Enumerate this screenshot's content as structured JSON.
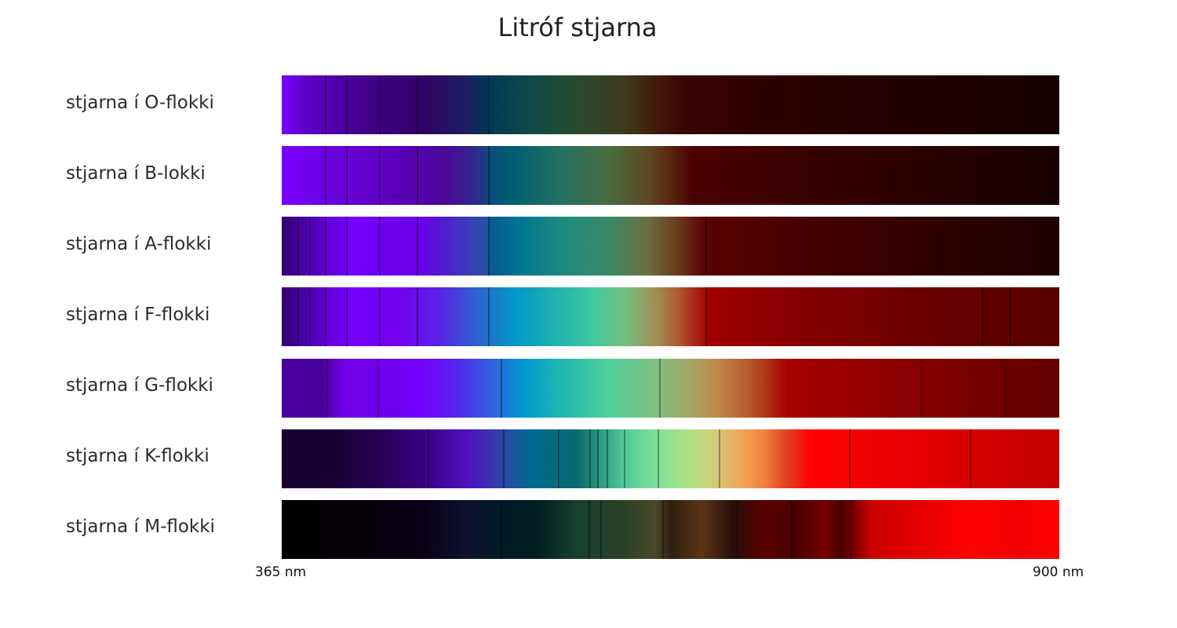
{
  "chart_data": {
    "type": "heatmap",
    "title": "Litróf stjarna",
    "xlabel": "",
    "ylabel": "",
    "x_range_nm": [
      365,
      900
    ],
    "x_tick_labels": [
      "365 nm",
      "900 nm"
    ],
    "categories": [
      "stjarna í O-flokki",
      "stjarna í B-lokki",
      "stjarna í A-flokki",
      "stjarna í F-flokki",
      "stjarna í G-flokki",
      "stjarna í K-flokki",
      "stjarna í M-flokki"
    ],
    "series": [
      {
        "name": "stjarna í O-flokki",
        "gradient": [
          [
            0,
            "#7a00ff"
          ],
          [
            3,
            "#5e00c8"
          ],
          [
            10,
            "#45008e"
          ],
          [
            18,
            "#320066"
          ],
          [
            24,
            "#1a2060"
          ],
          [
            27,
            "#003a55"
          ],
          [
            32,
            "#0f4a47"
          ],
          [
            38,
            "#2a4a30"
          ],
          [
            44,
            "#3e3a1c"
          ],
          [
            48,
            "#401c0a"
          ],
          [
            52,
            "#3a0404"
          ],
          [
            60,
            "#300000"
          ],
          [
            75,
            "#250000"
          ],
          [
            100,
            "#170000"
          ]
        ],
        "lines": [
          5.5,
          8.3,
          12.5,
          17.4,
          26.5
        ]
      },
      {
        "name": "stjarna í B-lokki",
        "gradient": [
          [
            0,
            "#7a00ff"
          ],
          [
            6,
            "#6a00e0"
          ],
          [
            15,
            "#5a00b8"
          ],
          [
            21,
            "#4a0898"
          ],
          [
            25,
            "#2f2a8c"
          ],
          [
            27,
            "#084f7a"
          ],
          [
            30,
            "#006070"
          ],
          [
            36,
            "#267060"
          ],
          [
            42,
            "#486c40"
          ],
          [
            47,
            "#5e4a24"
          ],
          [
            50,
            "#5a2410"
          ],
          [
            53,
            "#4a0000"
          ],
          [
            65,
            "#3a0000"
          ],
          [
            85,
            "#280000"
          ],
          [
            100,
            "#180000"
          ]
        ],
        "lines": [
          5.5,
          8.3,
          12.5,
          17.4,
          26.5
        ]
      },
      {
        "name": "stjarna í A-flokki",
        "gradient": [
          [
            0,
            "#300070"
          ],
          [
            2,
            "#420098"
          ],
          [
            6,
            "#6400d8"
          ],
          [
            9,
            "#7500ff"
          ],
          [
            13,
            "#7000ee"
          ],
          [
            18,
            "#6a00e8"
          ],
          [
            22,
            "#4a28c8"
          ],
          [
            26,
            "#2a50a8"
          ],
          [
            27,
            "#0a5a90"
          ],
          [
            31,
            "#007890"
          ],
          [
            36,
            "#1e8a80"
          ],
          [
            42,
            "#3a8a68"
          ],
          [
            47,
            "#6a7040"
          ],
          [
            51,
            "#6a3a1a"
          ],
          [
            54,
            "#5a0808"
          ],
          [
            56,
            "#580000"
          ],
          [
            70,
            "#420000"
          ],
          [
            85,
            "#2e0000"
          ],
          [
            100,
            "#200000"
          ]
        ],
        "lines": [
          2.0,
          3.5,
          5.5,
          8.3,
          12.5,
          17.4,
          26.5,
          54.5
        ]
      },
      {
        "name": "stjarna í F-flokki",
        "gradient": [
          [
            0,
            "#300070"
          ],
          [
            2,
            "#420098"
          ],
          [
            6,
            "#6400d8"
          ],
          [
            9,
            "#7500ff"
          ],
          [
            15,
            "#7500ee"
          ],
          [
            20,
            "#5a20e8"
          ],
          [
            25,
            "#3060d0"
          ],
          [
            27,
            "#1a78c8"
          ],
          [
            30,
            "#0098c8"
          ],
          [
            35,
            "#20b0b0"
          ],
          [
            40,
            "#40c8a0"
          ],
          [
            44,
            "#70c080"
          ],
          [
            48,
            "#a09058"
          ],
          [
            51,
            "#b05a30"
          ],
          [
            53,
            "#a82a1a"
          ],
          [
            55,
            "#a00000"
          ],
          [
            65,
            "#880000"
          ],
          [
            80,
            "#6e0000"
          ],
          [
            100,
            "#580000"
          ]
        ],
        "lines": [
          2.0,
          3.5,
          5.5,
          8.3,
          12.5,
          17.4,
          26.5,
          54.5,
          90.0,
          93.5
        ]
      },
      {
        "name": "stjarna í G-flokki",
        "gradient": [
          [
            0,
            "#4a00a0"
          ],
          [
            5,
            "#4a0098"
          ],
          [
            8,
            "#7200e8"
          ],
          [
            14,
            "#7000ee"
          ],
          [
            18,
            "#7400ff"
          ],
          [
            22,
            "#5820ee"
          ],
          [
            27,
            "#3060e0"
          ],
          [
            31,
            "#0098d0"
          ],
          [
            36,
            "#20b8b0"
          ],
          [
            42,
            "#50d09a"
          ],
          [
            48,
            "#80c080"
          ],
          [
            52,
            "#a0a868"
          ],
          [
            56,
            "#c08a48"
          ],
          [
            60,
            "#b85a30"
          ],
          [
            62,
            "#b03a1a"
          ],
          [
            65,
            "#a80000"
          ],
          [
            75,
            "#950000"
          ],
          [
            88,
            "#780000"
          ],
          [
            100,
            "#640000"
          ]
        ],
        "lines": [
          5.8,
          12.3,
          28.2,
          48.5,
          82.2,
          93.0
        ]
      },
      {
        "name": "stjarna í K-flokki",
        "gradient": [
          [
            0,
            "#180030"
          ],
          [
            6,
            "#180030"
          ],
          [
            12,
            "#260050"
          ],
          [
            18,
            "#380080"
          ],
          [
            24,
            "#5010c0"
          ],
          [
            28,
            "#3040a8"
          ],
          [
            32,
            "#006a90"
          ],
          [
            38,
            "#0a6a70"
          ],
          [
            40,
            "#208a78"
          ],
          [
            44,
            "#50c898"
          ],
          [
            48,
            "#7ee09a"
          ],
          [
            53,
            "#b4e080"
          ],
          [
            56,
            "#d8c878"
          ],
          [
            60,
            "#f49a50"
          ],
          [
            62,
            "#f08040"
          ],
          [
            65,
            "#e04020"
          ],
          [
            68,
            "#ff0000"
          ],
          [
            80,
            "#e80000"
          ],
          [
            90,
            "#d40000"
          ],
          [
            100,
            "#c40000"
          ]
        ],
        "lines": [
          18.8,
          28.5,
          35.5,
          39.6,
          40.6,
          41.8,
          44.0,
          48.3,
          56.2,
          73.0,
          88.5
        ]
      },
      {
        "name": "stjarna í M-flokki",
        "gradient": [
          [
            0,
            "#000000"
          ],
          [
            10,
            "#060008"
          ],
          [
            18,
            "#0a0018"
          ],
          [
            24,
            "#0e1230"
          ],
          [
            28,
            "#001a28"
          ],
          [
            33,
            "#021e20"
          ],
          [
            38,
            "#184030"
          ],
          [
            44,
            "#2a4026"
          ],
          [
            48,
            "#4a4a2a"
          ],
          [
            50,
            "#302010"
          ],
          [
            54,
            "#5a3418"
          ],
          [
            58,
            "#2a1008"
          ],
          [
            62,
            "#5a0000"
          ],
          [
            66,
            "#480000"
          ],
          [
            70,
            "#760000"
          ],
          [
            72,
            "#4a0000"
          ],
          [
            76,
            "#cc0000"
          ],
          [
            82,
            "#e40000"
          ],
          [
            88,
            "#ff0000"
          ],
          [
            95,
            "#f20000"
          ],
          [
            100,
            "#ff0000"
          ]
        ],
        "lines": [
          28.2,
          39.5,
          41.0,
          48.9,
          58.5,
          65.5,
          73.2
        ]
      }
    ]
  },
  "page": {
    "title": "Litróf stjarna",
    "rows": [
      {
        "label": "stjarna í O-flokki"
      },
      {
        "label": "stjarna í B-lokki"
      },
      {
        "label": "stjarna í A-flokki"
      },
      {
        "label": "stjarna í F-flokki"
      },
      {
        "label": "stjarna í G-flokki"
      },
      {
        "label": "stjarna í K-flokki"
      },
      {
        "label": "stjarna í M-flokki"
      }
    ],
    "axis": {
      "min_label": "365 nm",
      "max_label": "900 nm"
    }
  }
}
